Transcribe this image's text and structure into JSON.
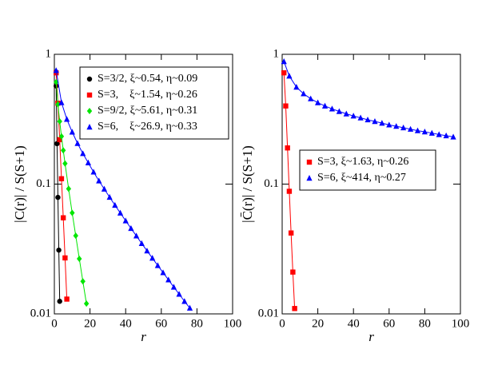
{
  "chart_data": [
    {
      "type": "line",
      "x_label": "r",
      "y_label": "|C(r)| / S(S+1)",
      "log_y": true,
      "xlim": [
        0,
        100
      ],
      "ylim": [
        0.01,
        1
      ],
      "xticks": [
        0,
        20,
        40,
        60,
        80,
        100
      ],
      "yticks": [
        0.01,
        0.1,
        1
      ],
      "legend_position": "upper right",
      "series": [
        {
          "name": "S=3/2, ξ~0.54, η~0.09",
          "color": "#000000",
          "marker": "circle",
          "x": [
            1,
            1.5,
            2,
            2.5,
            3
          ],
          "values": [
            0.57,
            0.205,
            0.079,
            0.031,
            0.0125
          ]
        },
        {
          "name": "S=3,    ξ~1.54, η~0.26",
          "color": "#ff0000",
          "marker": "square",
          "x": [
            1,
            2,
            3,
            4,
            5,
            6,
            7
          ],
          "values": [
            0.72,
            0.42,
            0.22,
            0.11,
            0.055,
            0.027,
            0.013
          ]
        },
        {
          "name": "S=9/2, ξ~5.61, η~0.31",
          "color": "#00e600",
          "marker": "diamond",
          "x": [
            1,
            2,
            3,
            4,
            5,
            6,
            8,
            10,
            12,
            14,
            16,
            18
          ],
          "values": [
            0.61,
            0.412,
            0.304,
            0.233,
            0.182,
            0.144,
            0.092,
            0.06,
            0.04,
            0.0266,
            0.0178,
            0.012
          ]
        },
        {
          "name": "S=6,    ξ~26.9, η~0.33",
          "color": "#0000ff",
          "marker": "triangle",
          "x": [
            1,
            4,
            7,
            10,
            13,
            16,
            19,
            22,
            25,
            28,
            31,
            34,
            37,
            40,
            43,
            46,
            49,
            52,
            55,
            58,
            61,
            64,
            67,
            70,
            73,
            76
          ],
          "values": [
            0.751,
            0.425,
            0.316,
            0.252,
            0.206,
            0.172,
            0.146,
            0.124,
            0.106,
            0.0917,
            0.0793,
            0.0688,
            0.0599,
            0.0522,
            0.0456,
            0.0399,
            0.0349,
            0.0306,
            0.0269,
            0.0236,
            0.0208,
            0.0183,
            0.0161,
            0.0142,
            0.0125,
            0.0111
          ]
        }
      ]
    },
    {
      "type": "line",
      "x_label": "r",
      "y_label": "|C̄(r)| / S(S+1)",
      "log_y": true,
      "xlim": [
        0,
        100
      ],
      "ylim": [
        0.01,
        1
      ],
      "xticks": [
        0,
        20,
        40,
        60,
        80,
        100
      ],
      "yticks": [
        0.01,
        0.1,
        1
      ],
      "legend_position": "center",
      "series": [
        {
          "name": "S=3, ξ~1.63, η~0.26",
          "color": "#ff0000",
          "marker": "square",
          "x": [
            1,
            2,
            3,
            4,
            5,
            6,
            7
          ],
          "values": [
            0.72,
            0.4,
            0.19,
            0.088,
            0.042,
            0.021,
            0.011
          ]
        },
        {
          "name": "S=6, ξ~414, η~0.27",
          "color": "#0000ff",
          "marker": "triangle",
          "x": [
            1,
            4,
            8,
            12,
            16,
            20,
            24,
            28,
            32,
            36,
            40,
            44,
            48,
            52,
            56,
            60,
            64,
            68,
            72,
            76,
            80,
            84,
            88,
            92,
            96
          ],
          "values": [
            0.88,
            0.681,
            0.559,
            0.497,
            0.455,
            0.424,
            0.4,
            0.38,
            0.363,
            0.348,
            0.335,
            0.324,
            0.313,
            0.304,
            0.295,
            0.286,
            0.279,
            0.272,
            0.265,
            0.258,
            0.253,
            0.247,
            0.241,
            0.236,
            0.231
          ]
        }
      ]
    }
  ]
}
